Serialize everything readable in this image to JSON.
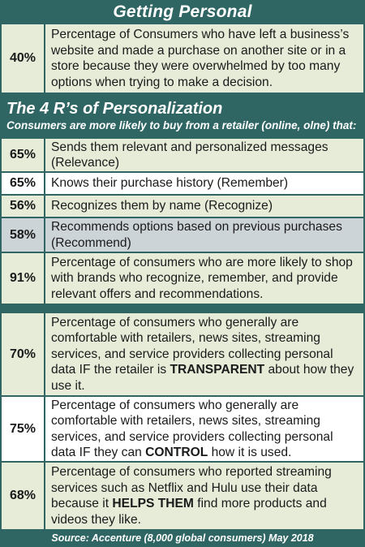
{
  "section1": {
    "title": "Getting Personal",
    "rows": [
      {
        "pct": "40%",
        "text": "Percentage of Consumers who have left a business’s website and made a purchase on another site or in a store because they were overwhelmed by too many options when trying to make a decision."
      }
    ]
  },
  "section2": {
    "title": "The 4 R’s of Personalization",
    "subtitle": "Consumers are more likely to buy from a retailer (online, olne) that:",
    "rows": [
      {
        "pct": "65%",
        "text": "Sends them relevant and personalized messages (Relevance)"
      },
      {
        "pct": "65%",
        "text": "Knows their purchase history (Remember)"
      },
      {
        "pct": "56%",
        "text": "Recognizes them by name (Recognize)"
      },
      {
        "pct": "58%",
        "text": "Recommends options based on previous purchases (Recommend)"
      },
      {
        "pct": "91%",
        "text": "Percentage of consumers who are more likely to shop with brands who recognize, remember, and provide relevant offers and recommendations."
      }
    ]
  },
  "section3": {
    "rows": [
      {
        "pct": "70%",
        "text_before": "Percentage of consumers who generally are comfortable with retailers, news sites, streaming services, and service providers collecting personal data IF the retailer is ",
        "emphasis": "TRANSPARENT",
        "text_after": " about how they use it."
      },
      {
        "pct": "75%",
        "text_before": "Percentage of consumers who generally are comfortable with retailers, news sites, streaming services, and service providers collecting personal data IF they can ",
        "emphasis": "CONTROL",
        "text_after": " how it is used."
      },
      {
        "pct": "68%",
        "text_before": "Percentage of consumers who reported streaming services such as Netflix and Hulu use their data because it ",
        "emphasis": "HELPS THEM",
        "text_after": " find more products and videos they like."
      }
    ]
  },
  "source": "Source: Accenture (8,000 global consumers) May 2018",
  "colors": {
    "band": "#2f6664",
    "green_row": "#e6ecd8",
    "gray_row": "#cdd4d8",
    "white_row": "#ffffff"
  }
}
